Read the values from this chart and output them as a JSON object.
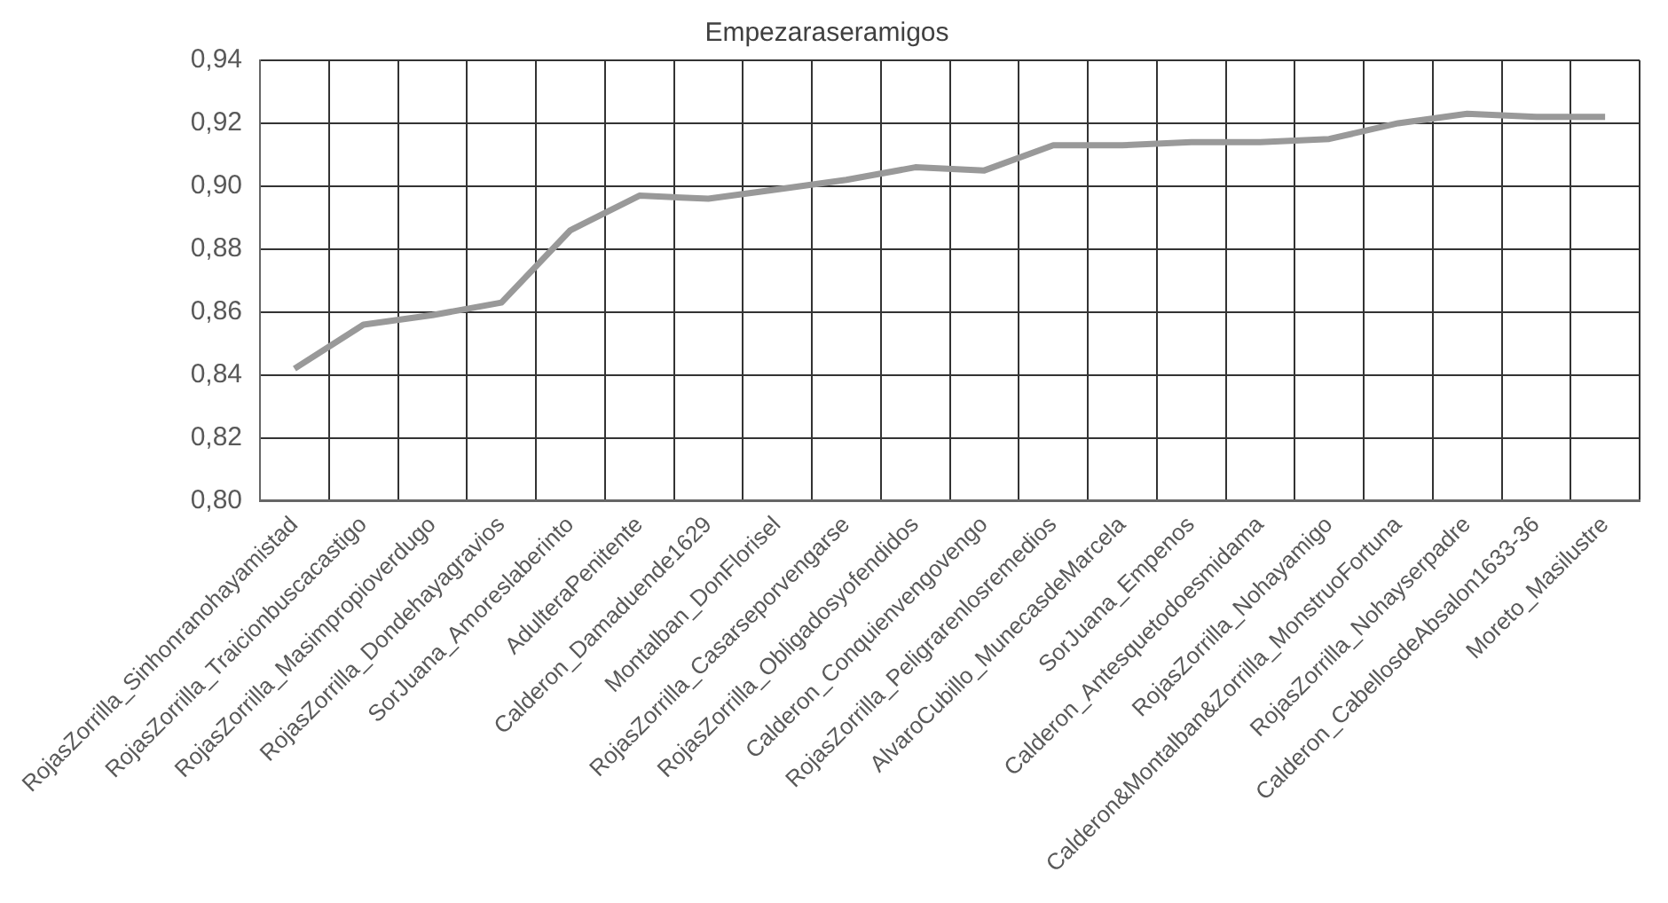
{
  "chart_data": {
    "type": "line",
    "title": "Empezaraseramigos",
    "categories": [
      "RojasZorrilla_Sinhonranohayamistad",
      "RojasZorrilla_Traicionbuscacastigo",
      "RojasZorrilla_Masimpropioverdugo",
      "RojasZorrilla_Dondehayagravios",
      "SorJuana_Amoreslaberinto",
      "AdulteraPenitente",
      "Calderon_Damaduende1629",
      "Montalban_DonFlorisel",
      "RojasZorrilla_Casarseporvengarse",
      "RojasZorrilla_Obligadosyofendidos",
      "Calderon_Conquienvengovengo",
      "RojasZorrilla_Peligrarenlosremedios",
      "AlvaroCubillo_MunecasdeMarcela",
      "SorJuana_Empenos",
      "Calderon_Antesquetodoesmidama",
      "RojasZorrilla_Nohayamigo",
      "Calderon&Montalban&Zorrilla_MonstruoFortuna",
      "RojasZorrilla_Nohayserpadre",
      "Calderon_CabellosdeAbsalon1633-36",
      "Moreto_Masilustre"
    ],
    "series": [
      {
        "color": "#999999",
        "values": [
          0.842,
          0.856,
          0.859,
          0.863,
          0.886,
          0.897,
          0.896,
          0.899,
          0.902,
          0.906,
          0.905,
          0.913,
          0.913,
          0.914,
          0.914,
          0.915,
          0.92,
          0.923,
          0.922,
          0.922
        ]
      }
    ],
    "ylim": [
      0.8,
      0.94
    ],
    "yticks": [
      {
        "value": 0.8,
        "label": "0,80"
      },
      {
        "value": 0.82,
        "label": "0,82"
      },
      {
        "value": 0.84,
        "label": "0,84"
      },
      {
        "value": 0.86,
        "label": "0,86"
      },
      {
        "value": 0.88,
        "label": "0,88"
      },
      {
        "value": 0.9,
        "label": "0,90"
      },
      {
        "value": 0.92,
        "label": "0,92"
      },
      {
        "value": 0.94,
        "label": "0,94"
      }
    ],
    "grid": true,
    "legend": false,
    "marker": "none",
    "line_style": "solid"
  }
}
